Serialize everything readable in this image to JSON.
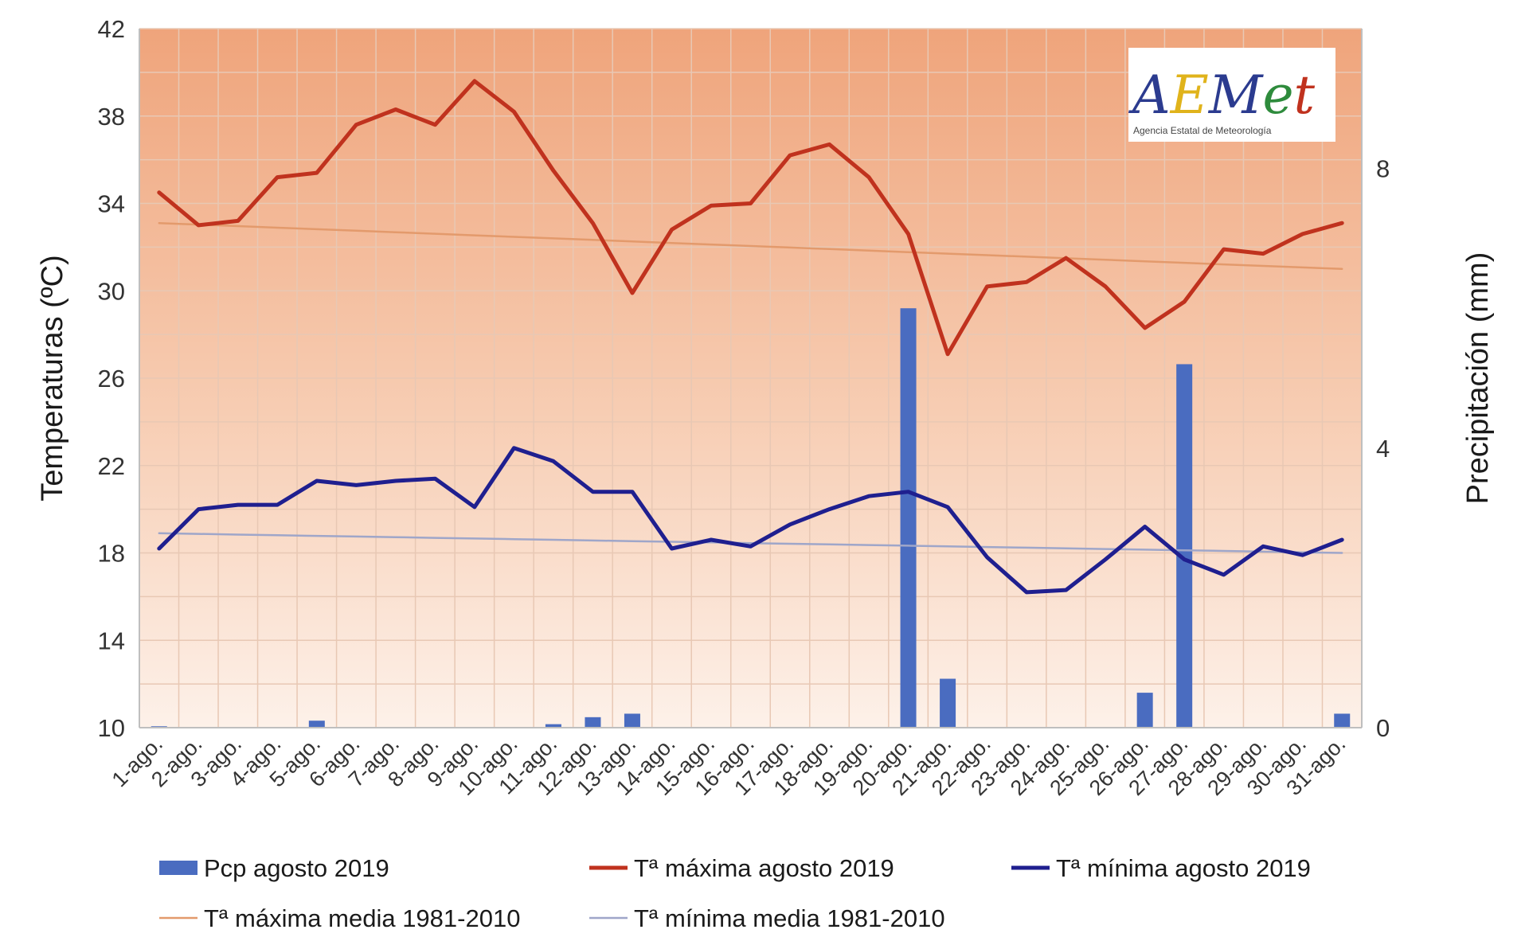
{
  "chart_data": {
    "type": "bar+line",
    "categories": [
      "1-ago.",
      "2-ago.",
      "3-ago.",
      "4-ago.",
      "5-ago.",
      "6-ago.",
      "7-ago.",
      "8-ago.",
      "9-ago.",
      "10-ago.",
      "11-ago.",
      "12-ago.",
      "13-ago.",
      "14-ago.",
      "15-ago.",
      "16-ago.",
      "17-ago.",
      "18-ago.",
      "19-ago.",
      "20-ago.",
      "21-ago.",
      "22-ago.",
      "23-ago.",
      "24-ago.",
      "25-ago.",
      "26-ago.",
      "27-ago.",
      "28-ago.",
      "29-ago.",
      "30-ago.",
      "31-ago."
    ],
    "ylabel": "Temperaturas (ºC)",
    "y2label": "Precipitación (mm)",
    "ylim": [
      10,
      42
    ],
    "yticks": [
      10,
      14,
      18,
      22,
      26,
      30,
      34,
      38,
      42
    ],
    "y2lim": [
      0,
      10
    ],
    "y2ticks": [
      0,
      4,
      8
    ],
    "grid": true,
    "legend_position": "bottom",
    "series": [
      {
        "name": "Pcp agosto 2019",
        "kind": "bar",
        "axis": "y2",
        "color": "#4a6cc0",
        "values": [
          0.02,
          0,
          0,
          0,
          0.1,
          0,
          0,
          0,
          0,
          0,
          0.05,
          0.15,
          0.2,
          0,
          0,
          0,
          0,
          0,
          0,
          6.0,
          0.7,
          0,
          0,
          0,
          0,
          0.5,
          5.2,
          0,
          0,
          0,
          0.2
        ]
      },
      {
        "name": "Tª máxima agosto 2019",
        "kind": "line",
        "axis": "y",
        "color": "#c0321e",
        "values": [
          34.5,
          33.0,
          33.2,
          35.2,
          35.4,
          37.6,
          38.3,
          37.6,
          39.6,
          38.2,
          35.5,
          33.1,
          29.9,
          32.8,
          33.9,
          34.0,
          36.2,
          36.7,
          35.2,
          32.6,
          27.1,
          30.2,
          30.4,
          31.5,
          30.2,
          28.3,
          29.5,
          31.9,
          31.7,
          32.6,
          33.1
        ]
      },
      {
        "name": "Tª mínima agosto 2019",
        "kind": "line",
        "axis": "y",
        "color": "#1f1f8f",
        "values": [
          18.2,
          20.0,
          20.2,
          20.2,
          21.3,
          21.1,
          21.3,
          21.4,
          20.1,
          22.8,
          22.2,
          20.8,
          20.8,
          18.2,
          18.6,
          18.3,
          19.3,
          20.0,
          20.6,
          20.8,
          20.1,
          17.8,
          16.2,
          16.3,
          17.7,
          19.2,
          17.7,
          17.0,
          18.3,
          17.9,
          18.6
        ]
      },
      {
        "name": "Tª máxima media 1981-2010",
        "kind": "line",
        "axis": "y",
        "color": "#e39a6c",
        "values": [
          33.1,
          33.03,
          32.96,
          32.89,
          32.82,
          32.75,
          32.68,
          32.61,
          32.54,
          32.47,
          32.4,
          32.33,
          32.26,
          32.19,
          32.12,
          32.05,
          31.98,
          31.91,
          31.84,
          31.77,
          31.7,
          31.63,
          31.56,
          31.49,
          31.42,
          31.35,
          31.28,
          31.21,
          31.14,
          31.07,
          31.0
        ]
      },
      {
        "name": "Tª mínima media 1981-2010",
        "kind": "line",
        "axis": "y",
        "color": "#9fa6c9",
        "values": [
          18.9,
          18.87,
          18.84,
          18.81,
          18.78,
          18.75,
          18.72,
          18.69,
          18.66,
          18.63,
          18.6,
          18.57,
          18.54,
          18.51,
          18.48,
          18.45,
          18.42,
          18.39,
          18.36,
          18.33,
          18.3,
          18.27,
          18.24,
          18.21,
          18.18,
          18.15,
          18.12,
          18.09,
          18.06,
          18.03,
          18.0
        ]
      }
    ]
  },
  "logo": {
    "text": "AEMet",
    "subtitle": "Agencia Estatal de Meteorología"
  },
  "colors": {
    "plot_bg_top": "#efa47b",
    "plot_bg_bottom": "#fcefe6",
    "gridline": "#e8c8b4"
  }
}
